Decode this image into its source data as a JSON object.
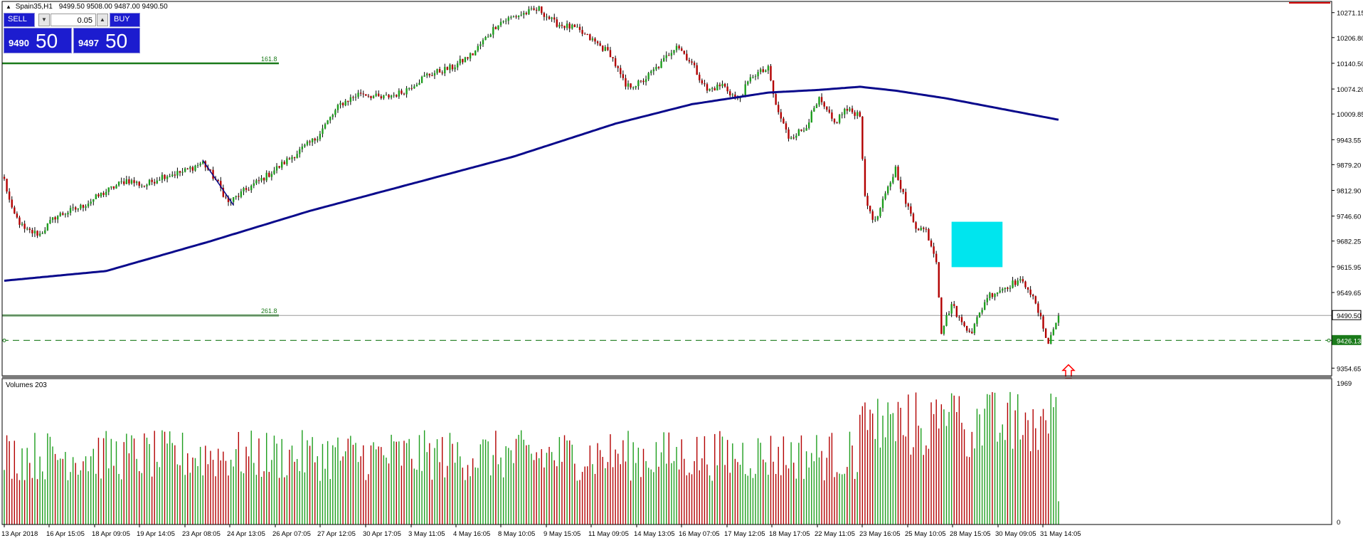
{
  "header": {
    "symbol": "Spain35,H1",
    "ohlc": "9499.50 9508.00 9487.00 9490.50"
  },
  "trade_panel": {
    "sell_label": "SELL",
    "buy_label": "BUY",
    "lot": "0.05",
    "sell_small": "9490",
    "sell_big": "50",
    "buy_small": "9497",
    "buy_big": "50"
  },
  "colors": {
    "bull": "#1e9e1e",
    "bear": "#b30000",
    "ma": "#0a0a8c",
    "fib": "#1a7a1a",
    "highlight": "#00e5ee",
    "dashed": "#1a7a1a",
    "current": "#9a9a9a",
    "arrow": "#ff0000"
  },
  "chart_data": {
    "type": "candlestick",
    "symbol": "Spain35",
    "timeframe": "H1",
    "y_ticks": [
      "10271.15",
      "10206.80",
      "10140.50",
      "10074.20",
      "10009.85",
      "9943.55",
      "9879.20",
      "9812.90",
      "9746.60",
      "9682.25",
      "9615.95",
      "9549.65",
      "9490.50",
      "9426.13",
      "9354.65"
    ],
    "x_ticks": [
      "13 Apr 2018",
      "16 Apr 15:05",
      "18 Apr 09:05",
      "19 Apr 14:05",
      "23 Apr 08:05",
      "24 Apr 13:05",
      "26 Apr 07:05",
      "27 Apr 12:05",
      "30 Apr 17:05",
      "3 May 11:05",
      "4 May 16:05",
      "8 May 10:05",
      "9 May 15:05",
      "11 May 09:05",
      "14 May 13:05",
      "16 May 07:05",
      "17 May 12:05",
      "18 May 17:05",
      "22 May 11:05",
      "23 May 16:05",
      "25 May 10:05",
      "28 May 15:05",
      "30 May 09:05",
      "31 May 14:05"
    ],
    "ylim": [
      9335,
      10300
    ],
    "current_price": 9490.5,
    "dashed_level": 9426.13,
    "fib_levels": [
      {
        "label": "161.8",
        "value": 10140.5
      },
      {
        "label": "261.8",
        "value": 9490.5
      }
    ],
    "price_path": [
      [
        0,
        9840
      ],
      [
        3,
        9760
      ],
      [
        8,
        9710
      ],
      [
        14,
        9700
      ],
      [
        20,
        9745
      ],
      [
        30,
        9770
      ],
      [
        40,
        9810
      ],
      [
        48,
        9840
      ],
      [
        55,
        9825
      ],
      [
        62,
        9850
      ],
      [
        70,
        9860
      ],
      [
        78,
        9885
      ],
      [
        84,
        9830
      ],
      [
        88,
        9780
      ],
      [
        94,
        9810
      ],
      [
        104,
        9855
      ],
      [
        114,
        9905
      ],
      [
        122,
        9945
      ],
      [
        132,
        10035
      ],
      [
        140,
        10065
      ],
      [
        148,
        10050
      ],
      [
        156,
        10065
      ],
      [
        166,
        10110
      ],
      [
        176,
        10130
      ],
      [
        184,
        10165
      ],
      [
        194,
        10245
      ],
      [
        202,
        10265
      ],
      [
        210,
        10280
      ],
      [
        216,
        10245
      ],
      [
        224,
        10230
      ],
      [
        232,
        10195
      ],
      [
        238,
        10165
      ],
      [
        244,
        10080
      ],
      [
        250,
        10090
      ],
      [
        258,
        10140
      ],
      [
        264,
        10190
      ],
      [
        270,
        10140
      ],
      [
        276,
        10070
      ],
      [
        282,
        10085
      ],
      [
        288,
        10045
      ],
      [
        294,
        10110
      ],
      [
        300,
        10125
      ],
      [
        303,
        10030
      ],
      [
        308,
        9950
      ],
      [
        314,
        9970
      ],
      [
        320,
        10045
      ],
      [
        326,
        9985
      ],
      [
        330,
        10020
      ],
      [
        336,
        10010
      ],
      [
        338,
        9790
      ],
      [
        342,
        9730
      ],
      [
        346,
        9800
      ],
      [
        350,
        9870
      ],
      [
        354,
        9780
      ],
      [
        358,
        9720
      ],
      [
        362,
        9710
      ],
      [
        366,
        9635
      ],
      [
        368,
        9450
      ],
      [
        372,
        9520
      ],
      [
        376,
        9470
      ],
      [
        380,
        9450
      ],
      [
        386,
        9540
      ],
      [
        392,
        9560
      ],
      [
        398,
        9580
      ],
      [
        402,
        9565
      ],
      [
        406,
        9500
      ],
      [
        410,
        9420
      ],
      [
        414,
        9490
      ]
    ],
    "ma_path": [
      [
        0,
        9580
      ],
      [
        40,
        9605
      ],
      [
        80,
        9680
      ],
      [
        120,
        9760
      ],
      [
        160,
        9830
      ],
      [
        200,
        9900
      ],
      [
        240,
        9985
      ],
      [
        270,
        10035
      ],
      [
        300,
        10065
      ],
      [
        320,
        10072
      ],
      [
        336,
        10080
      ],
      [
        350,
        10070
      ],
      [
        370,
        10050
      ],
      [
        390,
        10025
      ],
      [
        414,
        9995
      ]
    ],
    "volume_label": "Volumes 203",
    "volume_ticks": [
      "1969",
      "0"
    ],
    "volume_max": 1969,
    "highlight_box": {
      "start": 372,
      "end": 392,
      "top": 9732,
      "bottom": 9615
    },
    "arrow": {
      "index": 414,
      "value": 9345,
      "direction": "up"
    }
  }
}
